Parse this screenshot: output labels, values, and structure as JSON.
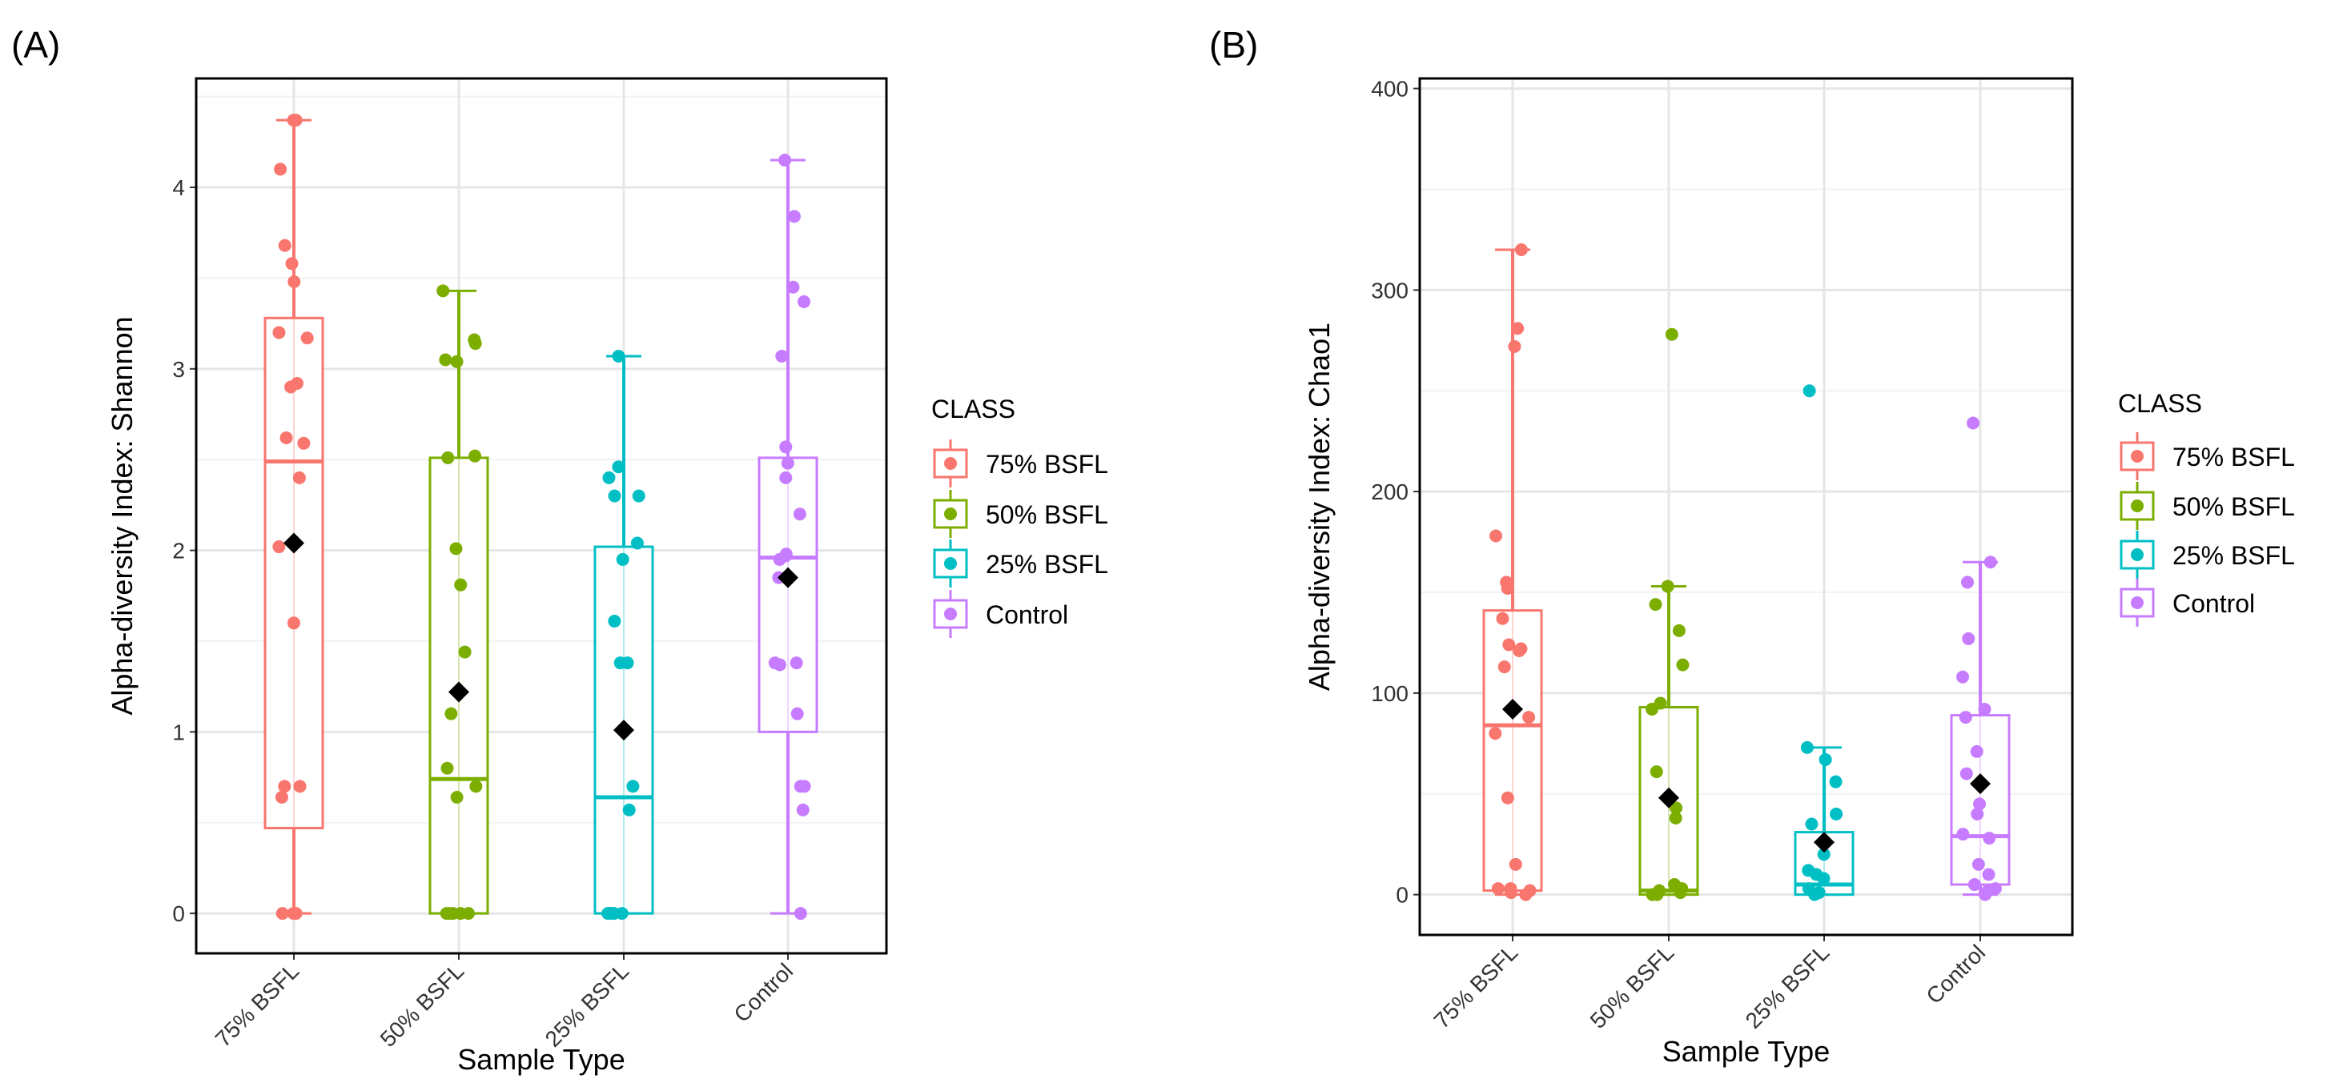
{
  "colors": {
    "75% BSFL": "#F8766D",
    "50% BSFL": "#7CAE00",
    "25% BSFL": "#00BFC4",
    "Control": "#C77CFF",
    "mean": "#000000"
  },
  "chart_data": [
    {
      "panel_label": "(A)",
      "type": "box",
      "xlabel": "Sample Type",
      "ylabel": "Alpha-diversity Index: Shannon",
      "ylim": [
        -0.22,
        4.6
      ],
      "yticks": [
        0,
        1,
        2,
        3,
        4
      ],
      "grid": true,
      "legend": {
        "title": "CLASS",
        "placement": "right",
        "entries": [
          "75% BSFL",
          "50% BSFL",
          "25% BSFL",
          "Control"
        ]
      },
      "categories": [
        "75% BSFL",
        "50% BSFL",
        "25% BSFL",
        "Control"
      ],
      "boxes": [
        {
          "min": 0,
          "q1": 0.47,
          "median": 2.49,
          "q3": 3.28,
          "max": 4.37,
          "mean": 2.04,
          "points": [
            4.37,
            4.37,
            4.1,
            3.68,
            3.58,
            3.48,
            3.2,
            3.17,
            2.92,
            2.9,
            2.62,
            2.59,
            2.4,
            2.02,
            1.6,
            0.7,
            0.7,
            0.64,
            0,
            0,
            0
          ]
        },
        {
          "min": 0,
          "q1": 0,
          "median": 0.74,
          "q3": 2.51,
          "max": 3.43,
          "mean": 1.22,
          "points": [
            3.43,
            3.16,
            3.14,
            3.05,
            3.04,
            2.52,
            2.51,
            2.01,
            1.81,
            1.44,
            1.1,
            0.8,
            0.7,
            0.64,
            0,
            0,
            0,
            0,
            0
          ]
        },
        {
          "min": 0,
          "q1": 0,
          "median": 0.64,
          "q3": 2.02,
          "max": 3.07,
          "mean": 1.01,
          "points": [
            3.07,
            2.46,
            2.4,
            2.3,
            2.3,
            2.04,
            1.95,
            1.61,
            1.38,
            1.38,
            0.7,
            0.57,
            0,
            0,
            0,
            0,
            0
          ]
        },
        {
          "min": 0,
          "q1": 1.0,
          "median": 1.96,
          "q3": 2.51,
          "max": 4.15,
          "mean": 1.85,
          "points": [
            4.15,
            3.84,
            3.45,
            3.37,
            3.07,
            2.57,
            2.48,
            2.4,
            2.2,
            1.98,
            1.97,
            1.95,
            1.85,
            1.38,
            1.38,
            1.37,
            1.1,
            0.7,
            0.7,
            0.57,
            0
          ]
        }
      ]
    },
    {
      "panel_label": "(B)",
      "type": "box",
      "xlabel": "Sample Type",
      "ylabel": "Alpha-diversity Index: Chao1",
      "ylim": [
        -20,
        405
      ],
      "yticks": [
        0,
        100,
        200,
        300,
        400
      ],
      "grid": true,
      "legend": {
        "title": "CLASS",
        "placement": "right",
        "entries": [
          "75% BSFL",
          "50% BSFL",
          "25% BSFL",
          "Control"
        ]
      },
      "categories": [
        "75% BSFL",
        "50% BSFL",
        "25% BSFL",
        "Control"
      ],
      "boxes": [
        {
          "min": 0,
          "q1": 2,
          "median": 84,
          "q3": 141,
          "max": 320,
          "mean": 92,
          "points": [
            320,
            281,
            272,
            178,
            155,
            152,
            137,
            124,
            121,
            122,
            113,
            88,
            80,
            48,
            15,
            3,
            3,
            2,
            1,
            0
          ]
        },
        {
          "min": 0,
          "q1": 0,
          "median": 2,
          "q3": 93,
          "max": 153,
          "mean": 48,
          "points": [
            278,
            153,
            144,
            131,
            114,
            95,
            92,
            61,
            43,
            38,
            5,
            3,
            2,
            1,
            0,
            0
          ]
        },
        {
          "min": 0,
          "q1": 0,
          "median": 5,
          "q3": 31,
          "max": 73,
          "mean": 26,
          "points": [
            250,
            73,
            67,
            56,
            40,
            35,
            20,
            12,
            10,
            8,
            3,
            1,
            0
          ]
        },
        {
          "min": 0,
          "q1": 5,
          "median": 29,
          "q3": 89,
          "max": 165,
          "mean": 55,
          "points": [
            234,
            165,
            155,
            127,
            108,
            92,
            88,
            71,
            60,
            45,
            40,
            30,
            28,
            15,
            10,
            5,
            3,
            2,
            0
          ]
        }
      ]
    }
  ]
}
